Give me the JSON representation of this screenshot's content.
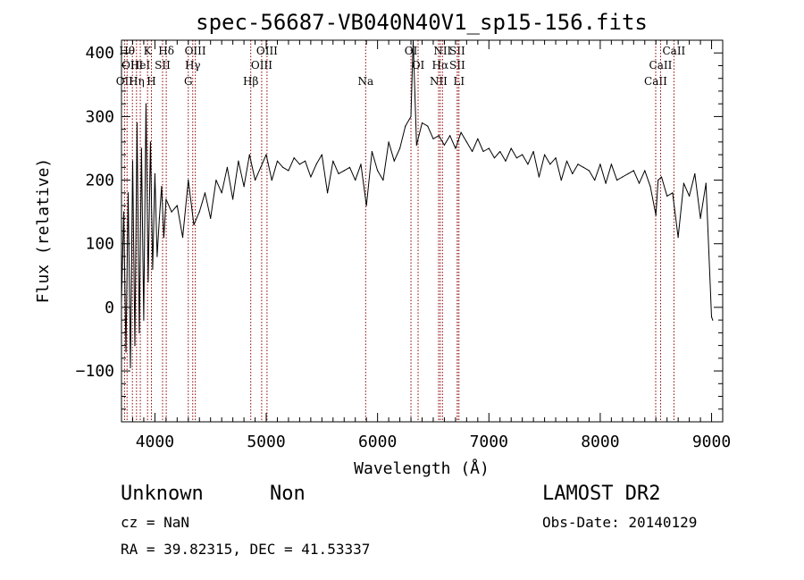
{
  "chart_data": {
    "type": "line",
    "title": "spec-56687-VB040N40V1_sp15-156.fits",
    "xlabel": "Wavelength (Å)",
    "ylabel": "Flux (relative)",
    "xlim": [
      3700,
      9100
    ],
    "ylim": [
      -180,
      420
    ],
    "xticks": [
      4000,
      5000,
      6000,
      7000,
      8000,
      9000
    ],
    "yticks": [
      -100,
      0,
      100,
      200,
      300,
      400
    ],
    "grid": false,
    "line_color": "#000000",
    "marker_color": "#8b0000",
    "line_markers": [
      {
        "x": 3727,
        "label": "OII",
        "row": 3
      },
      {
        "x": 3750,
        "label": "Hθ",
        "row": 1
      },
      {
        "x": 3798,
        "label": "OIII",
        "row": 2
      },
      {
        "x": 3835,
        "label": "Hη",
        "row": 3
      },
      {
        "x": 3869,
        "label": "HeI",
        "row": 2
      },
      {
        "x": 3934,
        "label": "K",
        "row": 1
      },
      {
        "x": 3969,
        "label": "H",
        "row": 3
      },
      {
        "x": 4069,
        "label": "SII",
        "row": 2
      },
      {
        "x": 4102,
        "label": "Hδ",
        "row": 1
      },
      {
        "x": 4300,
        "label": "G",
        "row": 3
      },
      {
        "x": 4340,
        "label": "Hγ",
        "row": 2
      },
      {
        "x": 4363,
        "label": "OIII",
        "row": 1
      },
      {
        "x": 4861,
        "label": "Hβ",
        "row": 3
      },
      {
        "x": 4959,
        "label": "OIII",
        "row": 2
      },
      {
        "x": 5007,
        "label": "OIII",
        "row": 1
      },
      {
        "x": 5893,
        "label": "Na",
        "row": 3
      },
      {
        "x": 6300,
        "label": "OI",
        "row": 1
      },
      {
        "x": 6364,
        "label": "OI",
        "row": 2
      },
      {
        "x": 6548,
        "label": "NII",
        "row": 3
      },
      {
        "x": 6563,
        "label": "Hα",
        "row": 2
      },
      {
        "x": 6583,
        "label": "NII",
        "row": 1
      },
      {
        "x": 6716,
        "label": "SII",
        "row": 1
      },
      {
        "x": 6716,
        "label": "SII",
        "row": 2
      },
      {
        "x": 6731,
        "label": "LI",
        "row": 3
      },
      {
        "x": 8498,
        "label": "CaII",
        "row": 3
      },
      {
        "x": 8542,
        "label": "CaII",
        "row": 2
      },
      {
        "x": 8662,
        "label": "CaII",
        "row": 1
      }
    ],
    "series": [
      {
        "x": [
          3700,
          3720,
          3740,
          3760,
          3780,
          3800,
          3820,
          3840,
          3860,
          3880,
          3900,
          3920,
          3940,
          3960,
          3980,
          4000,
          4020,
          4040,
          4060,
          4080,
          4100,
          4150,
          4200,
          4250,
          4300,
          4350,
          4400,
          4450,
          4500,
          4550,
          4600,
          4650,
          4700,
          4750,
          4800,
          4850,
          4900,
          4950,
          5000,
          5050,
          5100,
          5150,
          5200,
          5250,
          5300,
          5350,
          5400,
          5450,
          5500,
          5550,
          5600,
          5650,
          5700,
          5750,
          5800,
          5850,
          5900,
          5950,
          6000,
          6050,
          6100,
          6150,
          6200,
          6250,
          6300,
          6320,
          6350,
          6400,
          6450,
          6500,
          6550,
          6600,
          6650,
          6700,
          6750,
          6800,
          6850,
          6900,
          6950,
          7000,
          7050,
          7100,
          7150,
          7200,
          7250,
          7300,
          7350,
          7400,
          7450,
          7500,
          7550,
          7600,
          7650,
          7700,
          7750,
          7800,
          7850,
          7900,
          7950,
          8000,
          8050,
          8100,
          8150,
          8200,
          8250,
          8300,
          8350,
          8400,
          8450,
          8500,
          8520,
          8550,
          8600,
          8650,
          8700,
          8750,
          8800,
          8850,
          8900,
          8950,
          9000,
          9010
        ],
        "y": [
          10,
          150,
          -70,
          180,
          -95,
          230,
          -60,
          290,
          -40,
          250,
          -20,
          320,
          40,
          260,
          60,
          210,
          80,
          140,
          190,
          110,
          170,
          150,
          160,
          110,
          200,
          130,
          150,
          180,
          140,
          200,
          180,
          220,
          170,
          230,
          190,
          240,
          200,
          220,
          240,
          200,
          230,
          220,
          215,
          235,
          225,
          230,
          205,
          225,
          240,
          180,
          230,
          210,
          215,
          220,
          200,
          225,
          160,
          245,
          215,
          200,
          260,
          230,
          250,
          285,
          300,
          420,
          255,
          290,
          285,
          265,
          270,
          255,
          270,
          250,
          275,
          260,
          245,
          265,
          245,
          250,
          235,
          245,
          230,
          250,
          235,
          240,
          225,
          245,
          205,
          240,
          225,
          235,
          200,
          230,
          210,
          225,
          220,
          215,
          200,
          225,
          195,
          225,
          200,
          205,
          210,
          215,
          195,
          215,
          190,
          145,
          200,
          205,
          175,
          180,
          110,
          195,
          175,
          210,
          140,
          195,
          -15,
          -20
        ]
      }
    ]
  },
  "footer": {
    "object_class": "Unknown",
    "subclass": "Non",
    "cz": "cz = NaN",
    "coords": "RA =  39.82315, DEC =  41.53337",
    "survey": "LAMOST DR2",
    "obs_date": "Obs-Date: 20140129"
  }
}
